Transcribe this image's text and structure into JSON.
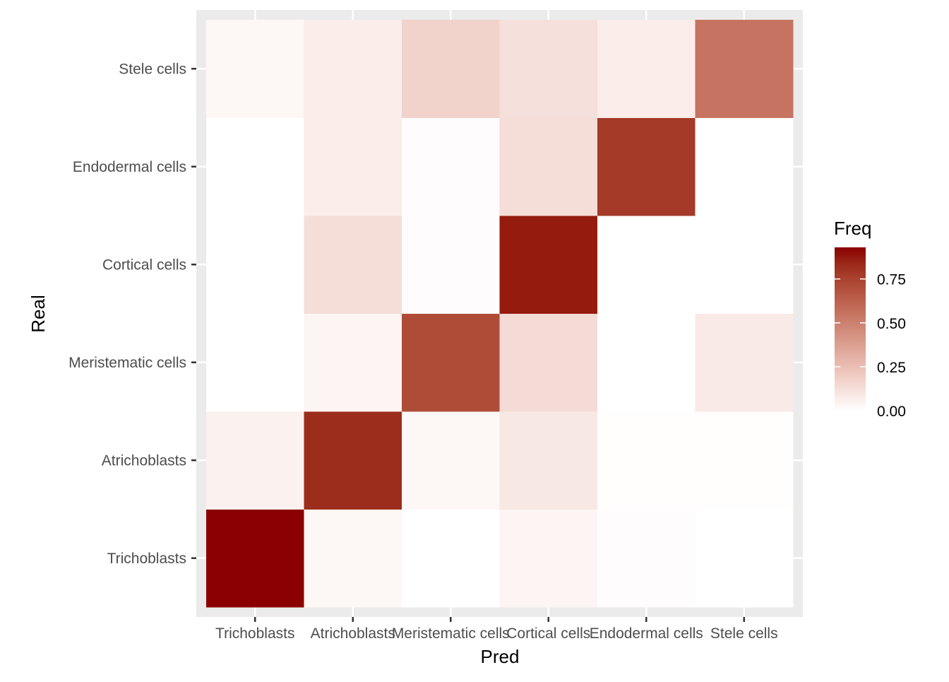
{
  "chart_data": {
    "type": "heatmap",
    "xlabel": "Pred",
    "ylabel": "Real",
    "x_categories": [
      "Trichoblasts",
      "Atrichoblasts",
      "Meristematic cells",
      "Cortical cells",
      "Endodermal cells",
      "Stele cells"
    ],
    "y_categories": [
      "Trichoblasts",
      "Atrichoblasts",
      "Meristematic cells",
      "Cortical cells",
      "Endodermal cells",
      "Stele cells"
    ],
    "values": [
      [
        0.93,
        0.03,
        0.0,
        0.04,
        0.01,
        0.0
      ],
      [
        0.05,
        0.83,
        0.03,
        0.09,
        0.005,
        0.005
      ],
      [
        0.0,
        0.04,
        0.71,
        0.14,
        0.0,
        0.08
      ],
      [
        0.0,
        0.13,
        0.01,
        0.88,
        0.0,
        0.0
      ],
      [
        0.0,
        0.07,
        0.01,
        0.13,
        0.78,
        0.0
      ],
      [
        0.03,
        0.07,
        0.17,
        0.12,
        0.07,
        0.55
      ]
    ],
    "legend": {
      "title": "Freq",
      "ticks": [
        0.0,
        0.25,
        0.5,
        0.75
      ],
      "tick_labels": [
        "0.00",
        "0.25",
        "0.50",
        "0.75"
      ],
      "range": [
        0,
        0.93
      ],
      "placement": "right"
    },
    "colors": {
      "low": "#FFFFFF",
      "high": "#8B0000",
      "panel": "#EBEBEB",
      "grid": "#FFFFFF"
    },
    "grid": true
  }
}
